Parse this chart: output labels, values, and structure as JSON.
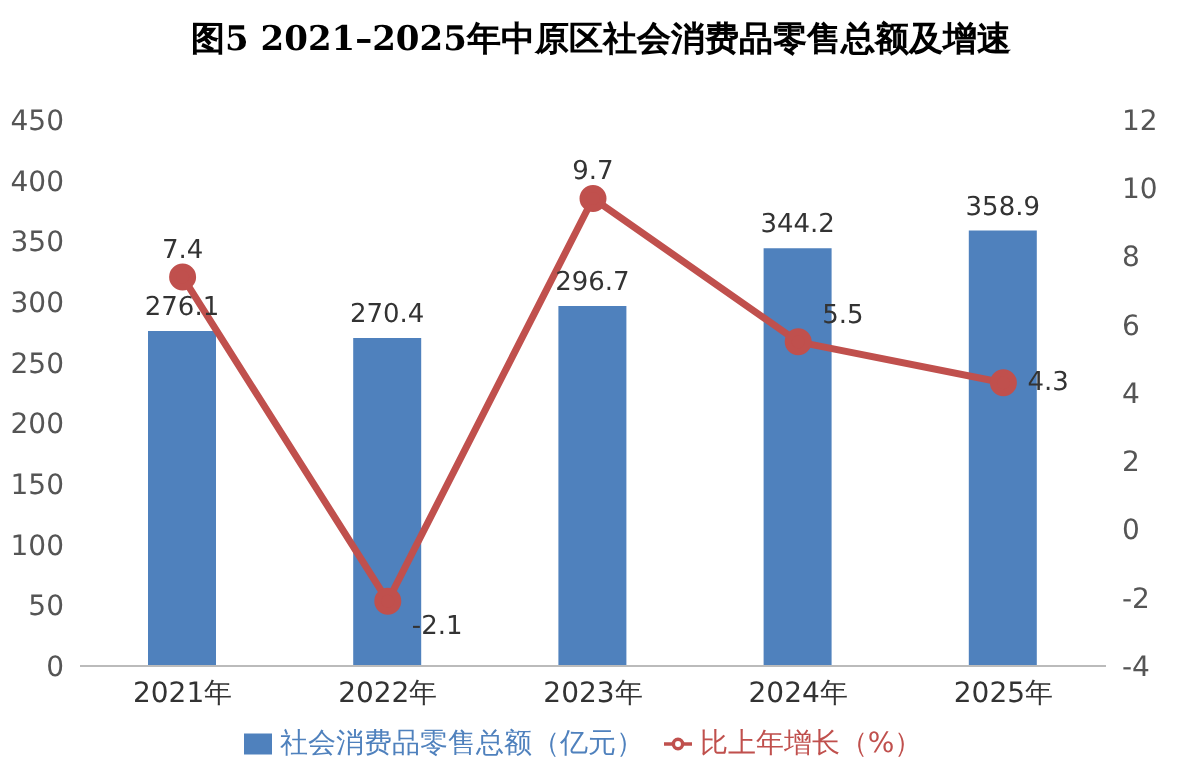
{
  "chart_data": {
    "type": "bar",
    "title": "图5  2021–2025年中原区社会消费品零售总额及增速",
    "categories": [
      "2021年",
      "2022年",
      "2023年",
      "2024年",
      "2025年"
    ],
    "series": [
      {
        "name": "社会消费品零售总额（亿元）",
        "color": "#4f81bd",
        "values": [
          276.1,
          270.4,
          296.7,
          344.2,
          358.9
        ]
      },
      {
        "name": "比上年增长（%）",
        "type": "line",
        "axis": "y2",
        "color": "#c0504d",
        "values": [
          7.4,
          -2.1,
          9.7,
          5.5,
          4.3
        ]
      }
    ],
    "ylim": [
      0,
      450
    ],
    "yticks": [
      0,
      50,
      100,
      150,
      200,
      250,
      300,
      350,
      400,
      450
    ],
    "y2lim": [
      -4,
      12
    ],
    "y2ticks": [
      -4,
      -2,
      0,
      2,
      4,
      6,
      8,
      10,
      12
    ],
    "data_labels": true,
    "grid": false,
    "legend": "bottom",
    "marker": "circle",
    "line_style": "solid"
  }
}
